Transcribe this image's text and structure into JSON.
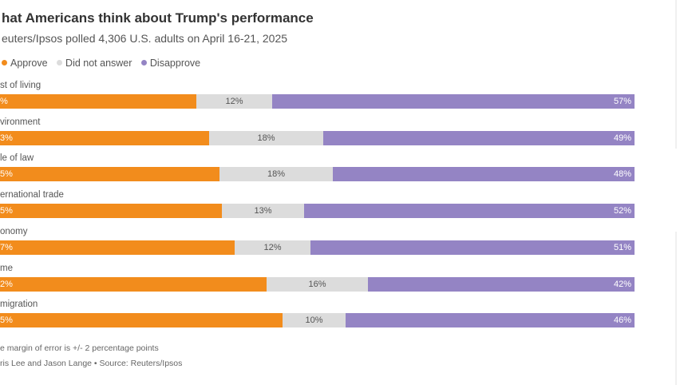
{
  "title": "hat Americans think about Trump's performance",
  "subtitle": "euters/Ipsos polled 4,306 U.S. adults on April 16-21, 2025",
  "legend": [
    {
      "label": "Approve",
      "color": "#f28c1c"
    },
    {
      "label": "Did not answer",
      "color": "#dcdcdc"
    },
    {
      "label": "Disapprove",
      "color": "#9484c4"
    }
  ],
  "chart_data": {
    "type": "bar",
    "orientation": "horizontal-stacked-100",
    "title": "hat Americans think about Trump's performance",
    "subtitle": "euters/Ipsos polled 4,306 U.S. adults on April 16-21, 2025",
    "categories": [
      "st of living",
      "vironment",
      "le of law",
      "ernational trade",
      "onomy",
      "me",
      "migration"
    ],
    "series": [
      {
        "name": "Approve",
        "color": "#f28c1c",
        "values": [
          31,
          33,
          35,
          35,
          37,
          42,
          45
        ],
        "labels": [
          "%",
          "3%",
          "5%",
          "5%",
          "7%",
          "2%",
          "5%"
        ]
      },
      {
        "name": "Did not answer",
        "color": "#dcdcdc",
        "values": [
          12,
          18,
          18,
          13,
          12,
          16,
          10
        ],
        "labels": [
          "12%",
          "18%",
          "18%",
          "13%",
          "12%",
          "16%",
          "10%"
        ]
      },
      {
        "name": "Disapprove",
        "color": "#9484c4",
        "values": [
          57,
          49,
          48,
          52,
          51,
          42,
          46
        ],
        "labels": [
          "57%",
          "49%",
          "48%",
          "52%",
          "51%",
          "42%",
          "46%"
        ]
      }
    ],
    "xlim": [
      0,
      100
    ],
    "legend_position": "top-left",
    "grid": false
  },
  "footnote": "e margin of error is +/- 2 percentage points",
  "credit": "ris Lee and Jason Lange • Source: Reuters/Ipsos"
}
